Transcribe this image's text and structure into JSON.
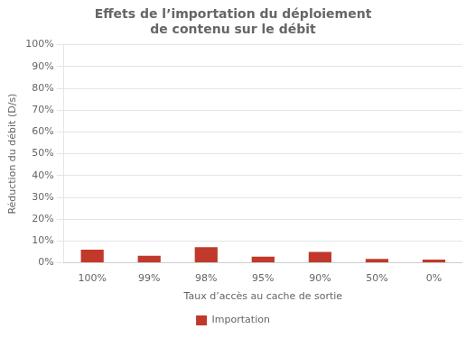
{
  "chart_data": {
    "type": "bar",
    "title": "Effets de l’importation du déploiement\nde contenu sur le débit",
    "xlabel": "Taux d’accès au cache de sortie",
    "ylabel": "Réduction du débit (D/s)",
    "categories": [
      "100%",
      "99%",
      "98%",
      "95%",
      "90%",
      "50%",
      "0%"
    ],
    "series": [
      {
        "name": "Importation",
        "color": "#c0392b",
        "values": [
          6.0,
          3.2,
          7.2,
          2.8,
          5.0,
          1.8,
          1.5
        ]
      }
    ],
    "ylim": [
      0,
      100
    ],
    "yticks": [
      {
        "value": 0,
        "label": "0%"
      },
      {
        "value": 10,
        "label": "10%"
      },
      {
        "value": 20,
        "label": "20%"
      },
      {
        "value": 30,
        "label": "30%"
      },
      {
        "value": 40,
        "label": "40%"
      },
      {
        "value": 50,
        "label": "50%"
      },
      {
        "value": 60,
        "label": "60%"
      },
      {
        "value": 70,
        "label": "70%"
      },
      {
        "value": 80,
        "label": "80%"
      },
      {
        "value": 90,
        "label": "90%"
      },
      {
        "value": 100,
        "label": "100%"
      }
    ],
    "grid": "y",
    "legend": "bottom"
  }
}
